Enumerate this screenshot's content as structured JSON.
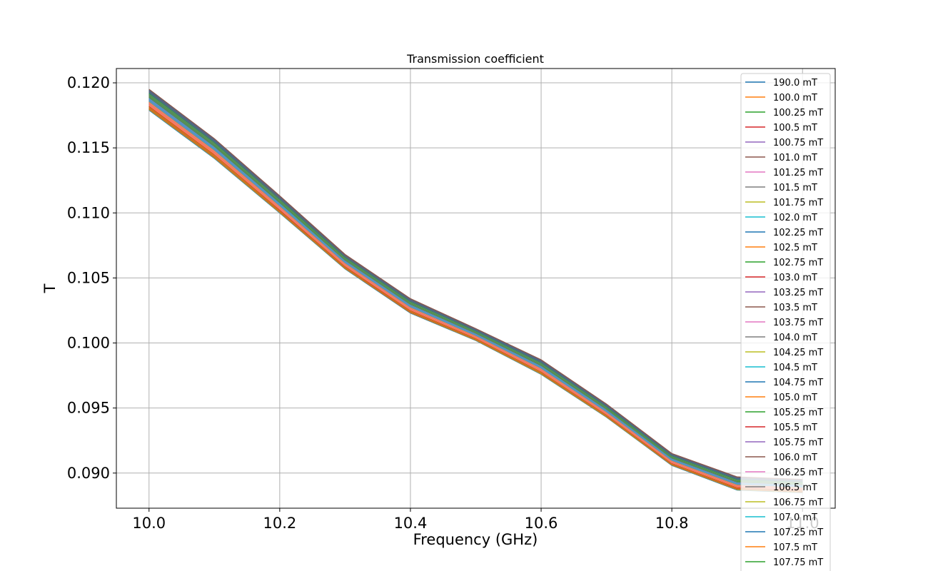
{
  "chart_data": {
    "type": "line",
    "title": "Transmission coefficient",
    "xlabel": "Frequency (GHz)",
    "ylabel": "T",
    "xlim": [
      9.95,
      11.05
    ],
    "ylim": [
      0.0873,
      0.1211
    ],
    "xticks": [
      "10.0",
      "10.2",
      "10.4",
      "10.6",
      "10.8",
      "11.0"
    ],
    "yticks": [
      "0.090",
      "0.095",
      "0.100",
      "0.105",
      "0.110",
      "0.115",
      "0.120"
    ],
    "grid": true,
    "legend_position": "right",
    "x": [
      10.0,
      10.1,
      10.2,
      10.3,
      10.4,
      10.5,
      10.6,
      10.7,
      10.8,
      10.9,
      11.0
    ],
    "band": {
      "upper": [
        0.1195,
        0.1157,
        0.1113,
        0.1068,
        0.1034,
        0.1011,
        0.0987,
        0.0953,
        0.0915,
        0.0897,
        0.0895
      ],
      "lower": [
        0.1179,
        0.1142,
        0.11,
        0.1057,
        0.1023,
        0.1002,
        0.0976,
        0.0943,
        0.0906,
        0.0887,
        0.0885
      ]
    },
    "series_colors": [
      "#1f77b4",
      "#ff7f0e",
      "#2ca02c",
      "#d62728",
      "#9467bd",
      "#8c564b",
      "#e377c2",
      "#7f7f7f",
      "#bcbd22",
      "#17becf"
    ],
    "series": [
      {
        "name": "190.0 mT"
      },
      {
        "name": "100.0 mT"
      },
      {
        "name": "100.25 mT"
      },
      {
        "name": "100.5 mT"
      },
      {
        "name": "100.75 mT"
      },
      {
        "name": "101.0 mT"
      },
      {
        "name": "101.25 mT"
      },
      {
        "name": "101.5 mT"
      },
      {
        "name": "101.75 mT"
      },
      {
        "name": "102.0 mT"
      },
      {
        "name": "102.25 mT"
      },
      {
        "name": "102.5 mT"
      },
      {
        "name": "102.75 mT"
      },
      {
        "name": "103.0 mT"
      },
      {
        "name": "103.25 mT"
      },
      {
        "name": "103.5 mT"
      },
      {
        "name": "103.75 mT"
      },
      {
        "name": "104.0 mT"
      },
      {
        "name": "104.25 mT"
      },
      {
        "name": "104.5 mT"
      },
      {
        "name": "104.75 mT"
      },
      {
        "name": "105.0 mT"
      },
      {
        "name": "105.25 mT"
      },
      {
        "name": "105.5 mT"
      },
      {
        "name": "105.75 mT"
      },
      {
        "name": "106.0 mT"
      },
      {
        "name": "106.25 mT"
      },
      {
        "name": "106.5 mT"
      },
      {
        "name": "106.75 mT"
      },
      {
        "name": "107.0 mT"
      },
      {
        "name": "107.25 mT"
      },
      {
        "name": "107.5 mT"
      },
      {
        "name": "107.75 mT"
      }
    ]
  }
}
